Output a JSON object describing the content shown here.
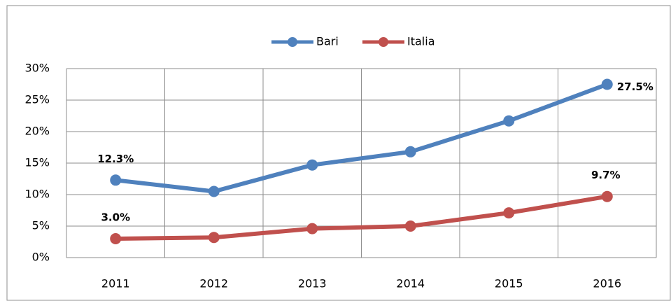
{
  "chart_data": {
    "type": "line",
    "categories": [
      "2011",
      "2012",
      "2013",
      "2014",
      "2015",
      "2016"
    ],
    "series": [
      {
        "name": "Bari",
        "color": "#4f81bd",
        "values": [
          12.3,
          10.5,
          14.7,
          16.8,
          21.7,
          27.5
        ],
        "value_labels": [
          "12.3%",
          null,
          null,
          null,
          null,
          "27.5%"
        ]
      },
      {
        "name": "Italia",
        "color": "#c0504d",
        "values": [
          3.0,
          3.2,
          4.6,
          5.0,
          7.1,
          9.7
        ],
        "value_labels": [
          "3.0%",
          null,
          null,
          null,
          null,
          "9.7%"
        ]
      }
    ],
    "ylim": [
      0,
      30
    ],
    "yticks": [
      {
        "value": 0,
        "label": "0%"
      },
      {
        "value": 5,
        "label": "5%"
      },
      {
        "value": 10,
        "label": "10%"
      },
      {
        "value": 15,
        "label": "15%"
      },
      {
        "value": 20,
        "label": "20%"
      },
      {
        "value": 25,
        "label": "25%"
      },
      {
        "value": 30,
        "label": "30%"
      }
    ],
    "grid": true,
    "legend": "top"
  }
}
